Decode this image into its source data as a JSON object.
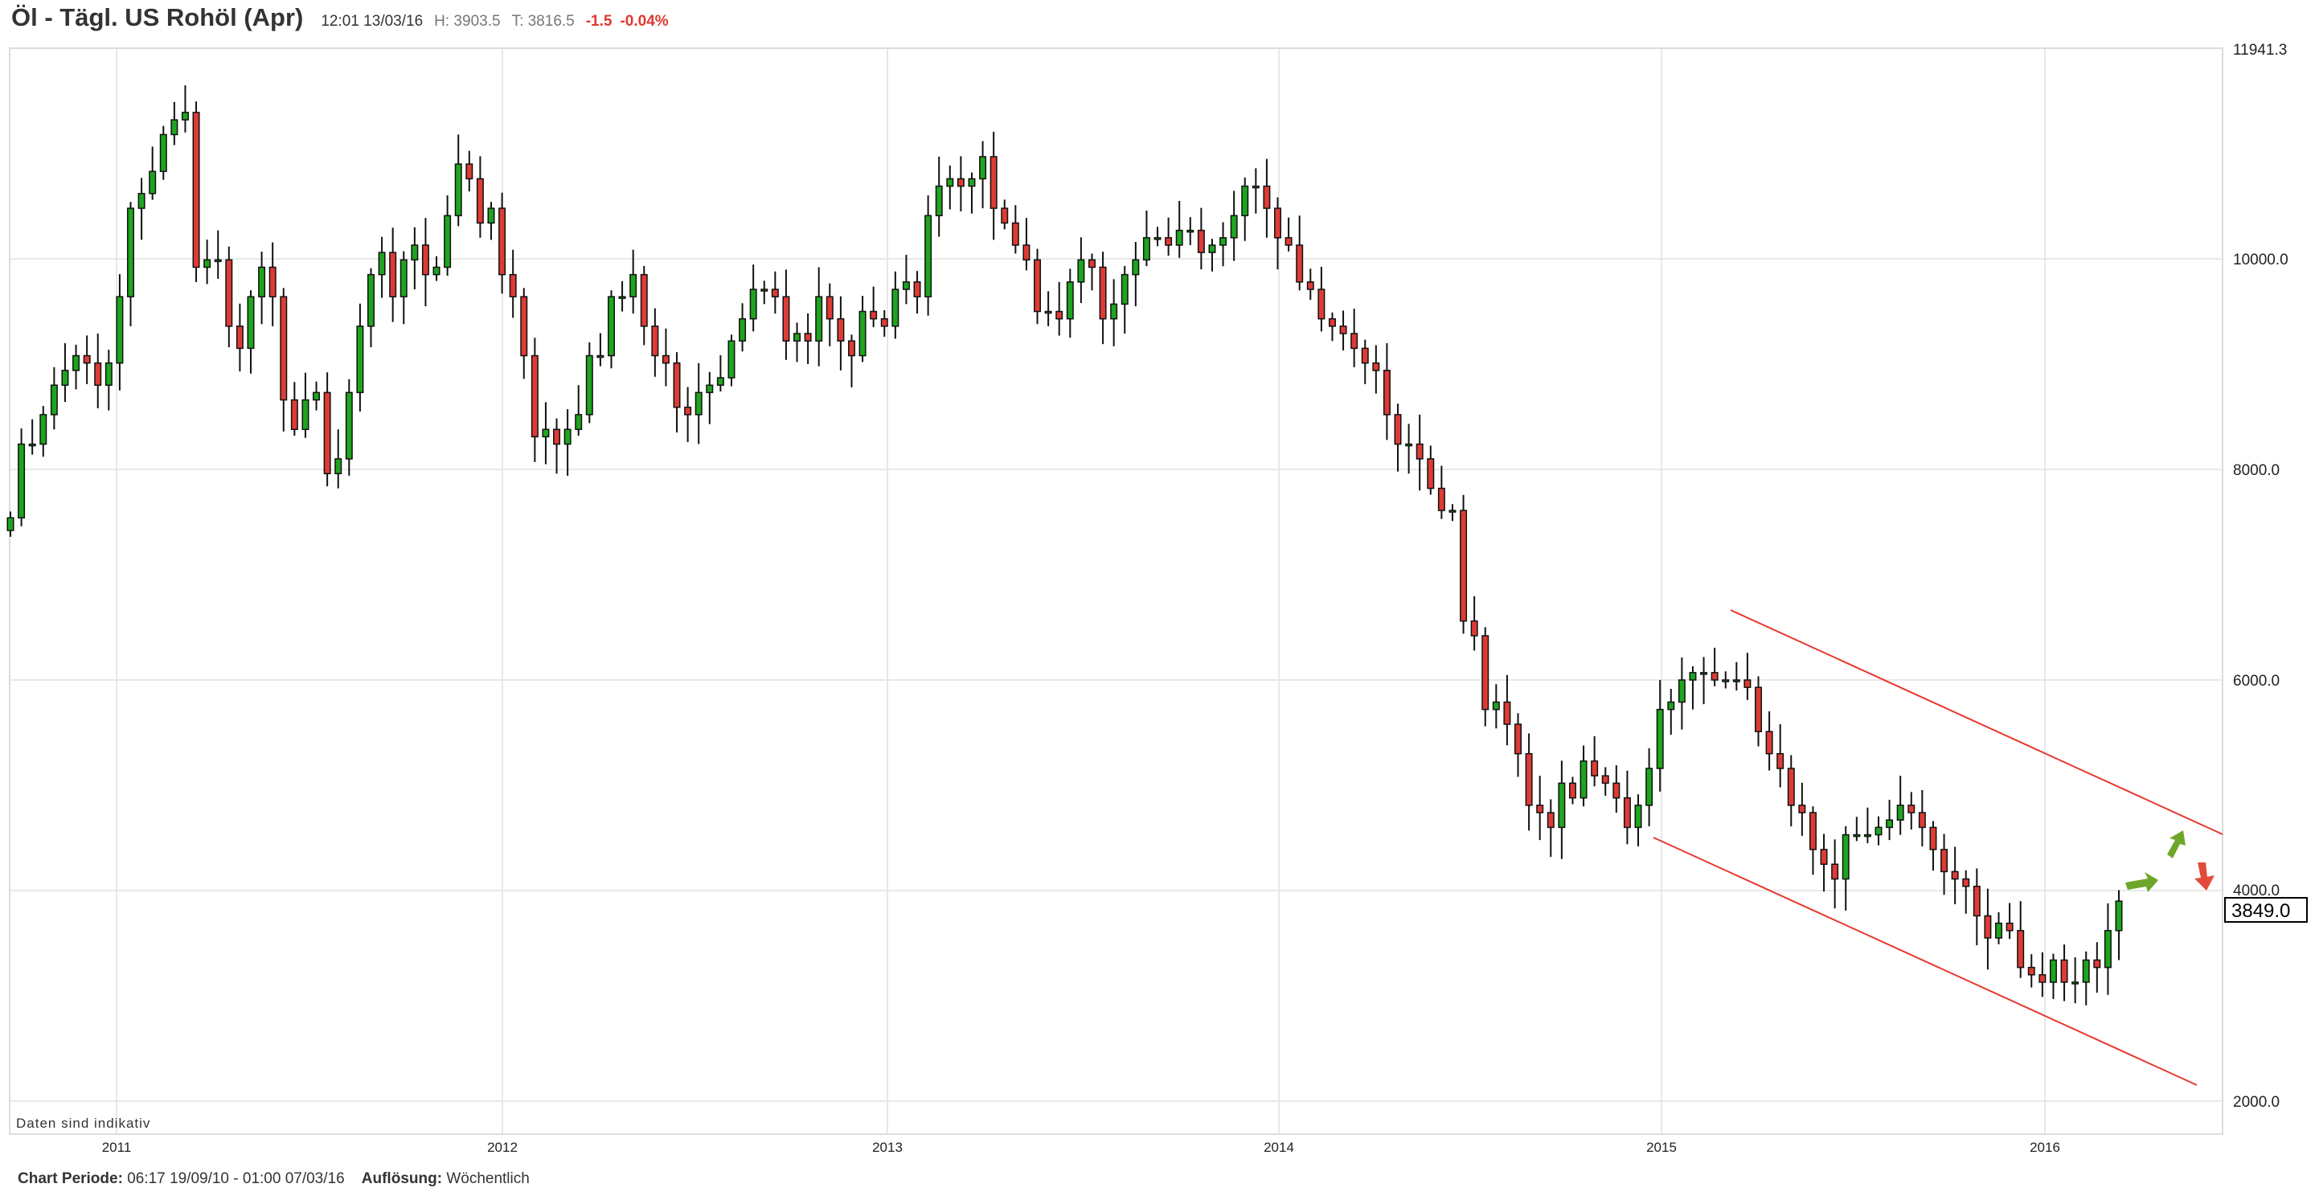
{
  "header": {
    "title": "Öl - Tägl. US Rohöl (Apr)",
    "time": "12:01 13/03/16",
    "high": "H: 3903.5",
    "low": "T: 3816.5",
    "change": "-1.5",
    "change_pct": "-0.04%"
  },
  "footer": {
    "period_label": "Chart Periode:",
    "period_value": "06:17 19/09/10 - 01:00 07/03/16",
    "resolution_label": "Auflösung:",
    "resolution_value": "Wöchentlich"
  },
  "colors": {
    "up": "#1ea51e",
    "down": "#de3b36",
    "channel": "#e8382f",
    "arrow_up": "#6fa62a",
    "arrow_down": "#e24b3b"
  },
  "chart_data": {
    "type": "candlestick",
    "title": "Öl - Tägl. US Rohöl (Apr)",
    "note": "Daten sind indikativ",
    "x_tick_labels": [
      "2011",
      "2012",
      "2013",
      "2014",
      "2015",
      "2016"
    ],
    "y_tick_labels": [
      "11941.3",
      "10000.0",
      "8000.0",
      "6000.0",
      "4000.0",
      "2000.0"
    ],
    "ylim": [
      2000,
      11941.3
    ],
    "last_price": "3849.0",
    "grid": true,
    "closes": [
      7540,
      8240,
      8240,
      8520,
      8800,
      8940,
      9080,
      9010,
      8800,
      9010,
      9640,
      10480,
      10620,
      10830,
      11180,
      11320,
      11390,
      9920,
      9990,
      9990,
      9360,
      9150,
      9640,
      9920,
      9640,
      8660,
      8380,
      8660,
      8730,
      7960,
      8100,
      8730,
      9360,
      9850,
      10060,
      9640,
      9990,
      10130,
      9850,
      9920,
      10410,
      10900,
      10760,
      10340,
      10480,
      9850,
      9640,
      9080,
      8310,
      8380,
      8240,
      8380,
      8520,
      9080,
      9080,
      9640,
      9640,
      9850,
      9360,
      9080,
      9010,
      8590,
      8520,
      8730,
      8800,
      8870,
      9220,
      9430,
      9710,
      9710,
      9640,
      9220,
      9290,
      9220,
      9640,
      9430,
      9220,
      9080,
      9500,
      9430,
      9360,
      9710,
      9780,
      9640,
      10410,
      10690,
      10760,
      10690,
      10760,
      10970,
      10480,
      10340,
      10130,
      9990,
      9500,
      9500,
      9430,
      9780,
      9990,
      9920,
      9430,
      9570,
      9850,
      9990,
      10200,
      10200,
      10130,
      10270,
      10270,
      10060,
      10130,
      10200,
      10410,
      10690,
      10690,
      10480,
      10200,
      10130,
      9780,
      9710,
      9430,
      9360,
      9290,
      9150,
      9010,
      8940,
      8520,
      8240,
      8240,
      8100,
      7820,
      7610,
      7610,
      6560,
      6420,
      5720,
      5790,
      5580,
      5300,
      4810,
      4740,
      4600,
      5020,
      4880,
      5230,
      5090,
      5020,
      4880,
      4600,
      4810,
      5160,
      5720,
      5790,
      6000,
      6070,
      6070,
      6000,
      6000,
      6000,
      5930,
      5510,
      5300,
      5160,
      4810,
      4740,
      4390,
      4250,
      4110,
      4530,
      4530,
      4530,
      4600,
      4670,
      4810,
      4740,
      4600,
      4390,
      4180,
      4110,
      4040,
      3760,
      3550,
      3690,
      3620,
      3270,
      3200,
      3130,
      3340,
      3130,
      3130,
      3340,
      3270,
      3620,
      3900
    ]
  }
}
